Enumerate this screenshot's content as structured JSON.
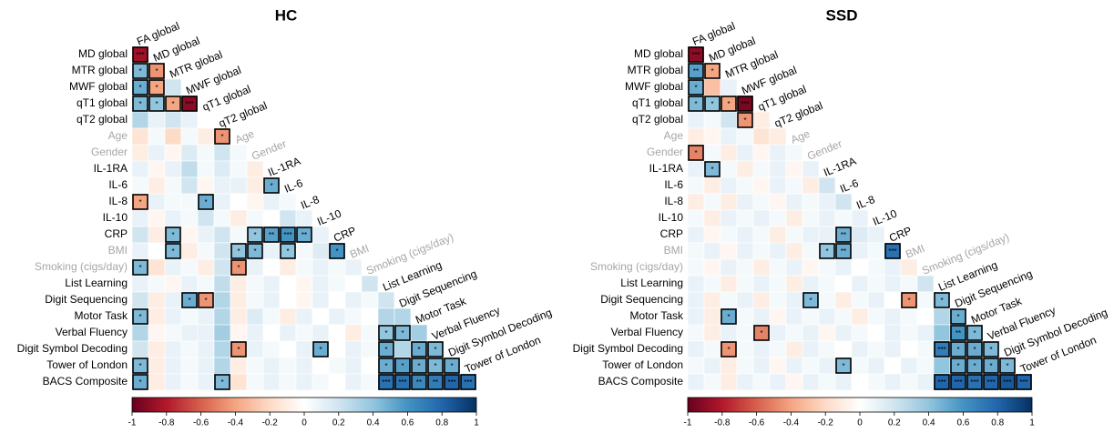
{
  "chart_data": [
    {
      "type": "heatmap",
      "title": "HC",
      "row_labels": [
        "MD global",
        "MTR global",
        "MWF global",
        "qT1 global",
        "qT2 global",
        "Age",
        "Gender",
        "IL-1RA",
        "IL-6",
        "IL-8",
        "IL-10",
        "CRP",
        "BMI",
        "Smoking (cigs/day)",
        "List Learning",
        "Digit Sequencing",
        "Motor Task",
        "Verbal Fluency",
        "Digit Symbol Decoding",
        "Tower of London",
        "BACS Composite"
      ],
      "column_labels": [
        "FA global",
        "MD global",
        "MTR global",
        "MWF global",
        "qT1 global",
        "qT2 global",
        "Age",
        "Gender",
        "IL-1RA",
        "IL-6",
        "IL-8",
        "IL-10",
        "CRP",
        "BMI",
        "Smoking (cigs/day)",
        "List Learning",
        "Digit Sequencing",
        "Motor Task",
        "Verbal Fluency",
        "Digit Symbol Decoding",
        "Tower of London"
      ],
      "muted_labels": [
        "Age",
        "Gender",
        "BMI",
        "Smoking (cigs/day)"
      ],
      "muted_color": "#a6a6a6",
      "values": [
        [
          -0.85
        ],
        [
          0.45,
          -0.45
        ],
        [
          0.5,
          -0.4,
          0.2
        ],
        [
          0.45,
          0.4,
          -0.4,
          -0.9
        ],
        [
          0.3,
          0.1,
          0.2,
          0.1,
          0
        ],
        [
          -0.15,
          0.05,
          -0.2,
          0.05,
          -0.1,
          -0.45
        ],
        [
          -0.1,
          0.1,
          -0.05,
          0.15,
          0.05,
          0.2,
          0.05
        ],
        [
          0.1,
          -0.05,
          0.1,
          0.25,
          0.05,
          0.15,
          0.05,
          -0.1
        ],
        [
          0.05,
          -0.1,
          0.05,
          0.2,
          -0.05,
          0.1,
          0.1,
          -0.1,
          0.5
        ],
        [
          -0.4,
          0.1,
          0.05,
          0.05,
          0.5,
          0.1,
          0,
          -0.05,
          0.1,
          0.05
        ],
        [
          0.1,
          -0.05,
          0.1,
          0.05,
          0.2,
          0.05,
          -0.1,
          0.05,
          0,
          0.2,
          0.1
        ],
        [
          0.2,
          -0.1,
          0.45,
          -0.05,
          0.1,
          0.2,
          0.05,
          0.4,
          0.55,
          0.6,
          0.5,
          0.1
        ],
        [
          0.1,
          0,
          0.45,
          -0.1,
          0.05,
          0.2,
          0.4,
          0.45,
          0.1,
          0.4,
          0.05,
          0.15,
          0.6
        ],
        [
          0.45,
          -0.15,
          0.1,
          0.05,
          -0.1,
          0.2,
          -0.45,
          0.1,
          0,
          -0.1,
          0.05,
          0.1,
          0.05,
          0.1
        ],
        [
          0.1,
          0.05,
          -0.05,
          0.1,
          0.05,
          0.25,
          -0.1,
          0.05,
          0.1,
          0,
          -0.05,
          0.1,
          0.05,
          0,
          0.2
        ],
        [
          0.2,
          -0.1,
          0.1,
          0.5,
          -0.45,
          0.3,
          -0.1,
          0.05,
          0.1,
          0,
          -0.05,
          0.1,
          0,
          0.1,
          0.05,
          0.2
        ],
        [
          0.45,
          -0.1,
          0.1,
          0.05,
          0.1,
          0.3,
          -0.1,
          0.15,
          0.05,
          -0.1,
          0.1,
          0,
          0.1,
          0.05,
          0,
          0.3,
          0.3
        ],
        [
          0.3,
          -0.05,
          0.05,
          0.1,
          0.1,
          0.35,
          -0.05,
          0.1,
          0,
          0.1,
          0.05,
          0.1,
          0,
          -0.1,
          0.05,
          0.4,
          0.45,
          0.35
        ],
        [
          0.2,
          -0.1,
          0.1,
          0.05,
          0.1,
          0.3,
          -0.45,
          0.1,
          0.05,
          0,
          0.1,
          0.5,
          0,
          0.1,
          0.05,
          0.5,
          0.3,
          0.5,
          0.45
        ],
        [
          0.45,
          -0.1,
          0.1,
          0.05,
          0.1,
          0.3,
          -0.1,
          0.05,
          0.1,
          0.05,
          0.1,
          0,
          0.05,
          0.1,
          0,
          0.5,
          0.55,
          0.5,
          0.45,
          0.5
        ],
        [
          0.5,
          -0.1,
          0.1,
          0.05,
          0.1,
          0.45,
          -0.15,
          0.05,
          0.1,
          0.05,
          0.1,
          0.05,
          0,
          0.1,
          0.05,
          0.75,
          0.75,
          0.65,
          0.7,
          0.8,
          0.75
        ]
      ],
      "value_labels": [
        [
          "***"
        ],
        [
          "*",
          "*"
        ],
        [
          "*",
          "*",
          null
        ],
        [
          "*",
          "*",
          "*",
          "***"
        ],
        [
          null,
          null,
          null,
          null,
          null
        ],
        [
          null,
          null,
          null,
          null,
          null,
          "*"
        ],
        [
          null,
          null,
          null,
          null,
          null,
          null,
          null
        ],
        [
          null,
          null,
          null,
          null,
          null,
          null,
          null,
          null
        ],
        [
          null,
          null,
          null,
          null,
          null,
          null,
          null,
          null,
          "*"
        ],
        [
          "*",
          null,
          null,
          null,
          "*",
          null,
          null,
          null,
          null,
          null
        ],
        [
          null,
          null,
          null,
          null,
          null,
          null,
          null,
          null,
          null,
          null,
          null
        ],
        [
          null,
          null,
          "*",
          null,
          null,
          null,
          null,
          "*",
          "**",
          "***",
          "**",
          null
        ],
        [
          null,
          null,
          "*",
          null,
          null,
          null,
          "*",
          "*",
          null,
          "*",
          null,
          null,
          "*"
        ],
        [
          "*",
          null,
          null,
          null,
          null,
          null,
          "*",
          null,
          null,
          null,
          null,
          null,
          null,
          null
        ],
        [
          null,
          null,
          null,
          null,
          null,
          null,
          null,
          null,
          null,
          null,
          null,
          null,
          null,
          null,
          null
        ],
        [
          null,
          null,
          null,
          "*",
          "*",
          null,
          null,
          null,
          null,
          null,
          null,
          null,
          null,
          null,
          null,
          null
        ],
        [
          "*",
          null,
          null,
          null,
          null,
          null,
          null,
          null,
          null,
          null,
          null,
          null,
          null,
          null,
          null,
          null,
          null
        ],
        [
          null,
          null,
          null,
          null,
          null,
          null,
          null,
          null,
          null,
          null,
          null,
          null,
          null,
          null,
          null,
          "*",
          "*",
          null
        ],
        [
          null,
          null,
          null,
          null,
          null,
          null,
          "*",
          null,
          null,
          null,
          null,
          "*",
          null,
          null,
          null,
          "*",
          null,
          "*",
          "*"
        ],
        [
          "*",
          null,
          null,
          null,
          null,
          null,
          null,
          null,
          null,
          null,
          null,
          null,
          null,
          null,
          null,
          "*",
          "*",
          "*",
          "*",
          "*"
        ],
        [
          "*",
          null,
          null,
          null,
          null,
          "*",
          null,
          null,
          null,
          null,
          null,
          null,
          null,
          null,
          null,
          "***",
          "***",
          "**",
          "**",
          "***",
          "***"
        ]
      ],
      "zlim": [
        -1,
        1
      ],
      "zticks": [
        -1,
        -0.8,
        -0.6,
        -0.4,
        -0.2,
        0,
        0.2,
        0.4,
        0.6,
        0.8,
        1
      ],
      "colorscale": [
        "#67001f",
        "#b2182b",
        "#d6604d",
        "#f4a582",
        "#fddbc7",
        "#ffffff",
        "#d1e5f0",
        "#92c5de",
        "#4393c3",
        "#2166ac",
        "#053061"
      ]
    },
    {
      "type": "heatmap",
      "title": "SSD",
      "row_labels": [
        "MD global",
        "MTR global",
        "MWF global",
        "qT1 global",
        "qT2 global",
        "Age",
        "Gender",
        "IL-1RA",
        "IL-6",
        "IL-8",
        "IL-10",
        "CRP",
        "BMI",
        "Smoking (cigs/day)",
        "List Learning",
        "Digit Sequencing",
        "Motor Task",
        "Verbal Fluency",
        "Digit Symbol Decoding",
        "Tower of London",
        "BACS Composite"
      ],
      "column_labels": [
        "FA global",
        "MD global",
        "MTR global",
        "MWF global",
        "qT1 global",
        "qT2 global",
        "Age",
        "Gender",
        "IL-1RA",
        "IL-6",
        "IL-8",
        "IL-10",
        "CRP",
        "BMI",
        "Smoking (cigs/day)",
        "List Learning",
        "Digit Sequencing",
        "Motor Task",
        "Verbal Fluency",
        "Digit Symbol Decoding",
        "Tower of London"
      ],
      "muted_labels": [
        "Age",
        "Gender",
        "BMI",
        "Smoking (cigs/day)"
      ],
      "muted_color": "#a6a6a6",
      "values": [
        [
          -0.9
        ],
        [
          0.55,
          -0.4
        ],
        [
          0.5,
          -0.3,
          0.1
        ],
        [
          0.45,
          0.4,
          -0.4,
          -0.95
        ],
        [
          0.1,
          0.05,
          0.2,
          -0.45,
          -0.1
        ],
        [
          -0.1,
          -0.05,
          0.1,
          0.05,
          -0.15,
          -0.1
        ],
        [
          -0.5,
          0.05,
          -0.1,
          0.1,
          -0.05,
          0.1,
          0.05
        ],
        [
          0.1,
          0.45,
          0.05,
          -0.1,
          0.05,
          0.1,
          -0.05,
          0.1
        ],
        [
          0.05,
          -0.1,
          0.1,
          0.05,
          -0.05,
          0.1,
          0.05,
          -0.1,
          0.2
        ],
        [
          -0.1,
          0.05,
          -0.1,
          0.1,
          0.05,
          -0.05,
          0.1,
          0.05,
          0.1,
          0.2
        ],
        [
          0.05,
          -0.1,
          0.1,
          0.05,
          0.1,
          0.05,
          -0.1,
          0.05,
          0.1,
          0.05,
          0.1
        ],
        [
          0.1,
          -0.05,
          0.05,
          0.1,
          0.05,
          -0.1,
          0.05,
          0.1,
          0.1,
          0.5,
          0.15,
          0.1
        ],
        [
          0.05,
          0.1,
          -0.05,
          0.1,
          0.05,
          0.1,
          -0.1,
          0.05,
          0.4,
          0.5,
          0.1,
          0.05,
          0.75
        ],
        [
          0.05,
          -0.05,
          0.1,
          0.05,
          -0.1,
          0.05,
          0.1,
          -0.05,
          0.05,
          0.1,
          0,
          0.05,
          0.1,
          -0.1
        ],
        [
          0.1,
          0.05,
          -0.1,
          0.05,
          0.1,
          0.05,
          -0.1,
          0.1,
          0.05,
          0,
          0.1,
          0.05,
          0.1,
          0.05,
          0.2
        ],
        [
          0.1,
          -0.1,
          0.05,
          0.1,
          -0.1,
          0.05,
          0.1,
          0.45,
          0.05,
          -0.1,
          0.05,
          0.1,
          0,
          -0.45,
          0.05,
          0.45
        ],
        [
          0.1,
          -0.1,
          0.5,
          0.05,
          0.1,
          -0.05,
          0.1,
          0.05,
          0.1,
          0.05,
          -0.1,
          0.05,
          0.1,
          0.05,
          0,
          0.3,
          0.5
        ],
        [
          0.05,
          -0.1,
          0.1,
          0.05,
          -0.5,
          0.1,
          0.05,
          0.1,
          -0.05,
          0.1,
          0.05,
          0,
          0.1,
          0.05,
          0.1,
          0.4,
          0.6,
          0.45
        ],
        [
          0.1,
          0.05,
          -0.45,
          0.05,
          0.1,
          0.05,
          -0.1,
          0.1,
          0.05,
          0,
          0.1,
          0.05,
          0.1,
          0,
          0.05,
          0.7,
          0.5,
          0.5,
          0.45
        ],
        [
          0.05,
          0.1,
          -0.1,
          0.05,
          0.1,
          -0.05,
          0.1,
          0.05,
          0.1,
          0.45,
          0.05,
          0.1,
          0,
          0.1,
          0.05,
          0.4,
          0.5,
          0.5,
          0.5,
          0.45
        ],
        [
          0.1,
          0.05,
          -0.1,
          0.1,
          0.05,
          0.1,
          -0.05,
          0.1,
          0.05,
          0.1,
          0,
          0.05,
          0.1,
          0.05,
          0.1,
          0.8,
          0.8,
          0.75,
          0.8,
          0.85,
          0.8
        ]
      ],
      "value_labels": [
        [
          "***"
        ],
        [
          "**",
          "*"
        ],
        [
          "*",
          null,
          null
        ],
        [
          "*",
          "*",
          "*",
          "***"
        ],
        [
          null,
          null,
          null,
          "*",
          null
        ],
        [
          null,
          null,
          null,
          null,
          null,
          null
        ],
        [
          "*",
          null,
          null,
          null,
          null,
          null,
          null
        ],
        [
          null,
          "*",
          null,
          null,
          null,
          null,
          null,
          null
        ],
        [
          null,
          null,
          null,
          null,
          null,
          null,
          null,
          null,
          null
        ],
        [
          null,
          null,
          null,
          null,
          null,
          null,
          null,
          null,
          null,
          null
        ],
        [
          null,
          null,
          null,
          null,
          null,
          null,
          null,
          null,
          null,
          null,
          null
        ],
        [
          null,
          null,
          null,
          null,
          null,
          null,
          null,
          null,
          null,
          "**",
          null,
          null
        ],
        [
          null,
          null,
          null,
          null,
          null,
          null,
          null,
          null,
          "*",
          "**",
          null,
          null,
          "***"
        ],
        [
          null,
          null,
          null,
          null,
          null,
          null,
          null,
          null,
          null,
          null,
          null,
          null,
          null,
          null
        ],
        [
          null,
          null,
          null,
          null,
          null,
          null,
          null,
          null,
          null,
          null,
          null,
          null,
          null,
          null,
          null
        ],
        [
          null,
          null,
          null,
          null,
          null,
          null,
          null,
          "*",
          null,
          null,
          null,
          null,
          null,
          "*",
          null,
          "*"
        ],
        [
          null,
          null,
          "*",
          null,
          null,
          null,
          null,
          null,
          null,
          null,
          null,
          null,
          null,
          null,
          null,
          null,
          "*"
        ],
        [
          null,
          null,
          null,
          null,
          "*",
          null,
          null,
          null,
          null,
          null,
          null,
          null,
          null,
          null,
          null,
          null,
          "**",
          "*"
        ],
        [
          null,
          null,
          "*",
          null,
          null,
          null,
          null,
          null,
          null,
          null,
          null,
          null,
          null,
          null,
          null,
          "***",
          "*",
          "*",
          "*"
        ],
        [
          null,
          null,
          null,
          null,
          null,
          null,
          null,
          null,
          null,
          "*",
          null,
          null,
          null,
          null,
          null,
          null,
          "*",
          "*",
          "*",
          "*"
        ],
        [
          null,
          null,
          null,
          null,
          null,
          null,
          null,
          null,
          null,
          null,
          null,
          null,
          null,
          null,
          null,
          "***",
          "***",
          "***",
          "***",
          "***",
          "***"
        ]
      ],
      "zlim": [
        -1,
        1
      ],
      "zticks": [
        -1,
        -0.8,
        -0.6,
        -0.4,
        -0.2,
        0,
        0.2,
        0.4,
        0.6,
        0.8,
        1
      ],
      "colorscale": [
        "#67001f",
        "#b2182b",
        "#d6604d",
        "#f4a582",
        "#fddbc7",
        "#ffffff",
        "#d1e5f0",
        "#92c5de",
        "#4393c3",
        "#2166ac",
        "#053061"
      ]
    }
  ]
}
